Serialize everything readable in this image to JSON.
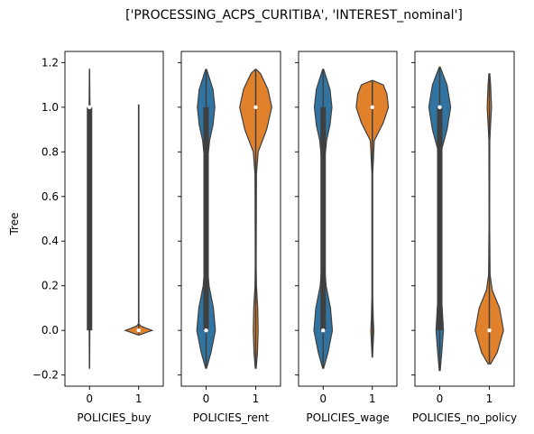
{
  "chart_data": {
    "type": "violin",
    "title": "['PROCESSING_ACPS_CURITIBA', 'INTEREST_nominal']",
    "ylabel": "Tree",
    "ylim": [
      -0.25,
      1.25
    ],
    "yticks": [
      "−0.2",
      "0.0",
      "0.2",
      "0.4",
      "0.6",
      "0.8",
      "1.0",
      "1.2"
    ],
    "ytick_values": [
      -0.2,
      0.0,
      0.2,
      0.4,
      0.6,
      0.8,
      1.0,
      1.2
    ],
    "categories": [
      "0",
      "1"
    ],
    "colors": {
      "cat0": "#3274a1",
      "cat1": "#e1812c",
      "box": "#3f3f3f"
    },
    "panels": [
      {
        "xlabel": "POLICIES_buy",
        "violins": [
          {
            "category": "0",
            "range": [
              -0.17,
              1.17
            ],
            "median": 1.0,
            "q1": 0.0,
            "q3": 1.0,
            "profile": [
              [
                -0.17,
                0.006
              ],
              [
                0.0,
                0.012
              ],
              [
                0.5,
                0.012
              ],
              [
                0.95,
                0.013
              ],
              [
                1.0,
                0.02
              ],
              [
                1.05,
                0.013
              ],
              [
                1.17,
                0.006
              ]
            ]
          },
          {
            "category": "1",
            "range": [
              -0.02,
              1.01
            ],
            "median": 0.0,
            "q1": 0.0,
            "q3": 0.0,
            "profile": [
              [
                -0.02,
                0.05
              ],
              [
                -0.01,
                0.3
              ],
              [
                0.0,
                0.55
              ],
              [
                0.01,
                0.3
              ],
              [
                0.02,
                0.08
              ],
              [
                0.03,
                0.01
              ],
              [
                1.01,
                0.01
              ]
            ]
          }
        ]
      },
      {
        "xlabel": "POLICIES_rent",
        "violins": [
          {
            "category": "0",
            "range": [
              -0.17,
              1.17
            ],
            "median": 0.0,
            "q1": 0.0,
            "q3": 1.0,
            "profile": [
              [
                -0.17,
                0.02
              ],
              [
                -0.1,
                0.2
              ],
              [
                0.0,
                0.38
              ],
              [
                0.1,
                0.3
              ],
              [
                0.2,
                0.12
              ],
              [
                0.3,
                0.05
              ],
              [
                0.5,
                0.04
              ],
              [
                0.75,
                0.05
              ],
              [
                0.85,
                0.14
              ],
              [
                0.92,
                0.28
              ],
              [
                1.0,
                0.36
              ],
              [
                1.08,
                0.28
              ],
              [
                1.17,
                0.02
              ]
            ]
          },
          {
            "category": "1",
            "range": [
              -0.17,
              1.17
            ],
            "median": 1.0,
            "q1": 1.0,
            "q3": 1.0,
            "profile": [
              [
                -0.17,
                0.02
              ],
              [
                -0.1,
                0.07
              ],
              [
                0.0,
                0.1
              ],
              [
                0.1,
                0.08
              ],
              [
                0.2,
                0.03
              ],
              [
                0.3,
                0.02
              ],
              [
                0.7,
                0.03
              ],
              [
                0.8,
                0.1
              ],
              [
                0.9,
                0.45
              ],
              [
                1.0,
                0.66
              ],
              [
                1.08,
                0.5
              ],
              [
                1.15,
                0.2
              ],
              [
                1.17,
                0.02
              ]
            ]
          }
        ]
      },
      {
        "xlabel": "POLICIES_wage",
        "violins": [
          {
            "category": "0",
            "range": [
              -0.17,
              1.17
            ],
            "median": 0.0,
            "q1": 0.0,
            "q3": 1.0,
            "profile": [
              [
                -0.17,
                0.02
              ],
              [
                -0.1,
                0.2
              ],
              [
                0.0,
                0.38
              ],
              [
                0.1,
                0.3
              ],
              [
                0.2,
                0.12
              ],
              [
                0.3,
                0.05
              ],
              [
                0.5,
                0.04
              ],
              [
                0.75,
                0.05
              ],
              [
                0.85,
                0.14
              ],
              [
                0.92,
                0.28
              ],
              [
                1.0,
                0.36
              ],
              [
                1.08,
                0.28
              ],
              [
                1.17,
                0.02
              ]
            ]
          },
          {
            "category": "1",
            "range": [
              -0.12,
              1.12
            ],
            "median": 1.0,
            "q1": 1.0,
            "q3": 1.0,
            "profile": [
              [
                -0.12,
                0.01
              ],
              [
                -0.05,
                0.04
              ],
              [
                0.0,
                0.06
              ],
              [
                0.05,
                0.04
              ],
              [
                0.15,
                0.015
              ],
              [
                0.7,
                0.015
              ],
              [
                0.85,
                0.08
              ],
              [
                0.93,
                0.45
              ],
              [
                1.0,
                0.66
              ],
              [
                1.06,
                0.6
              ],
              [
                1.1,
                0.45
              ],
              [
                1.12,
                0.02
              ]
            ]
          }
        ]
      },
      {
        "xlabel": "POLICIES_no_policy",
        "violins": [
          {
            "category": "0",
            "range": [
              -0.18,
              1.18
            ],
            "median": 1.0,
            "q1": 0.0,
            "q3": 1.0,
            "profile": [
              [
                -0.18,
                0.02
              ],
              [
                -0.1,
                0.08
              ],
              [
                0.0,
                0.15
              ],
              [
                0.1,
                0.1
              ],
              [
                0.2,
                0.04
              ],
              [
                0.5,
                0.03
              ],
              [
                0.8,
                0.05
              ],
              [
                0.9,
                0.3
              ],
              [
                1.0,
                0.45
              ],
              [
                1.1,
                0.3
              ],
              [
                1.18,
                0.02
              ]
            ]
          },
          {
            "category": "1",
            "range": [
              -0.15,
              1.15
            ],
            "median": 0.0,
            "q1": 0.0,
            "q3": 0.0,
            "profile": [
              [
                -0.15,
                0.05
              ],
              [
                -0.1,
                0.32
              ],
              [
                0.0,
                0.58
              ],
              [
                0.1,
                0.42
              ],
              [
                0.18,
                0.12
              ],
              [
                0.25,
                0.03
              ],
              [
                0.5,
                0.01
              ],
              [
                0.85,
                0.02
              ],
              [
                0.9,
                0.04
              ],
              [
                1.0,
                0.09
              ],
              [
                1.1,
                0.05
              ],
              [
                1.15,
                0.02
              ]
            ]
          }
        ]
      }
    ]
  }
}
